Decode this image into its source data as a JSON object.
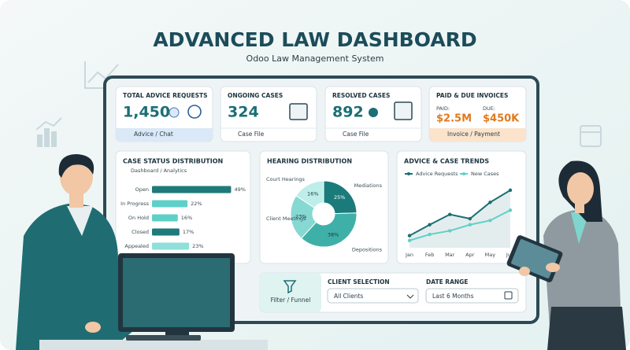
{
  "header": {
    "title": "ADVANCED LAW DASHBOARD",
    "subtitle": "Odoo Law Management System"
  },
  "cards": [
    {
      "title": "TOTAL ADVICE REQUESTS",
      "value": "1,450",
      "footer": "Advice / Chat"
    },
    {
      "title": "ONGOING CASES",
      "value": "324",
      "footer": "Case File"
    },
    {
      "title": "RESOLVED CASES",
      "value": "892",
      "footer": "Case File"
    },
    {
      "title": "PAID & DUE INVOICES",
      "paid_label": "PAID:",
      "paid": "$2.5M",
      "due_label": "DUE:",
      "due": "$450K",
      "footer": "Invoice / Payment"
    }
  ],
  "chart_data": [
    {
      "type": "bar",
      "orientation": "horizontal",
      "title": "CASE STATUS DISTRIBUTION",
      "subtitle": "Dashboard / Analytics",
      "categories": [
        "Open",
        "In Progress",
        "On Hold",
        "Closed",
        "Appealed"
      ],
      "values": [
        49,
        22,
        16,
        17,
        23
      ],
      "value_labels": [
        "49%",
        "22%",
        "16%",
        "17%",
        "23%"
      ],
      "colors": [
        "#1f7a7a",
        "#5fd0c8",
        "#5fd0c8",
        "#1f7a7a",
        "#8fe0da"
      ]
    },
    {
      "type": "pie",
      "title": "HEARING DISTRIBUTION",
      "categories": [
        "Mediations",
        "Depositions",
        "Client Meetings",
        "Court Hearings"
      ],
      "values": [
        25,
        38,
        23,
        16
      ],
      "value_labels": [
        "25%",
        "38%",
        "23%",
        "16%"
      ],
      "colors": [
        "#1b7b7b",
        "#3fb0a8",
        "#86d9d2",
        "#bdeee9"
      ]
    },
    {
      "type": "line",
      "title": "ADVICE & CASE TRENDS",
      "categories": [
        "Jan",
        "Feb",
        "Mar",
        "Apr",
        "May",
        "Jun"
      ],
      "ylim": [
        0,
        100
      ],
      "series": [
        {
          "name": "Advice Requests",
          "color": "#1b6f75",
          "values": [
            20,
            38,
            55,
            48,
            75,
            95
          ]
        },
        {
          "name": "New Cases",
          "color": "#5fd0c8",
          "values": [
            12,
            22,
            28,
            38,
            45,
            62
          ]
        }
      ]
    }
  ],
  "filters": {
    "filter": "Filter / Funnel",
    "client_label": "CLIENT SELECTION",
    "client": "All Clients",
    "date_label": "DATE RANGE",
    "date": "Last 6 Months"
  }
}
